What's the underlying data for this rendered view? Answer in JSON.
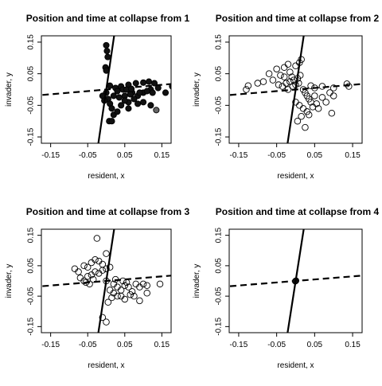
{
  "chart_data": [
    {
      "type": "scatter",
      "title": "Position and time at collapse from  1",
      "xlabel": "resident, x",
      "ylabel": "invader, y",
      "xlim": [
        -0.175,
        0.175
      ],
      "ylim": [
        -0.17,
        0.17
      ],
      "xticks": [
        "-0.15",
        "-0.05",
        "0.05",
        "0.15"
      ],
      "yticks": [
        "-0.15",
        "-0.05",
        "0.05",
        "0.15"
      ],
      "xtick_values": [
        -0.15,
        -0.05,
        0.05,
        0.15
      ],
      "ytick_values": [
        -0.15,
        -0.05,
        0.05,
        0.15
      ],
      "grid": false,
      "marker": "filled-circle",
      "marker_color": "#111111",
      "solid_line": [
        [
          -0.025,
          -0.2
        ],
        [
          0.025,
          0.2
        ]
      ],
      "dashed_line": [
        [
          -0.2,
          -0.02
        ],
        [
          0.2,
          0.02
        ]
      ],
      "points": [
        [
          0.0,
          0.14
        ],
        [
          0.002,
          0.122
        ],
        [
          0.004,
          0.103
        ],
        [
          -0.002,
          0.07
        ],
        [
          0.0,
          0.06
        ],
        [
          0.005,
          -0.03
        ],
        [
          0.01,
          -0.045
        ],
        [
          0.015,
          -0.06
        ],
        [
          0.02,
          -0.08
        ],
        [
          0.03,
          -0.07
        ],
        [
          0.008,
          -0.1
        ],
        [
          0.015,
          -0.1
        ],
        [
          0.04,
          -0.05
        ],
        [
          0.05,
          -0.02
        ],
        [
          0.06,
          -0.04
        ],
        [
          0.07,
          -0.01
        ],
        [
          0.085,
          -0.02
        ],
        [
          0.1,
          -0.01
        ],
        [
          0.12,
          0.0
        ],
        [
          0.14,
          0.005
        ],
        [
          0.16,
          -0.01
        ],
        [
          0.178,
          0.01
        ],
        [
          0.0,
          -0.01
        ],
        [
          0.025,
          0.005
        ],
        [
          0.04,
          0.01
        ],
        [
          0.06,
          0.015
        ],
        [
          0.08,
          0.02
        ],
        [
          0.1,
          0.022
        ],
        [
          0.115,
          0.025
        ],
        [
          0.13,
          0.02
        ],
        [
          -0.01,
          -0.02
        ],
        [
          -0.005,
          -0.035
        ],
        [
          0.02,
          -0.02
        ],
        [
          0.035,
          -0.025
        ],
        [
          0.05,
          -0.035
        ],
        [
          0.065,
          -0.015
        ],
        [
          0.075,
          -0.03
        ],
        [
          0.09,
          -0.01
        ],
        [
          0.11,
          -0.005
        ],
        [
          0.125,
          -0.01
        ],
        [
          0.045,
          0.0
        ],
        [
          0.055,
          0.0
        ],
        [
          0.068,
          0.002
        ],
        [
          0.03,
          -0.005
        ],
        [
          0.01,
          0.012
        ],
        [
          0.135,
          -0.065
        ],
        [
          0.12,
          -0.05
        ],
        [
          0.1,
          -0.04
        ],
        [
          0.085,
          -0.045
        ],
        [
          0.06,
          -0.06
        ]
      ]
    },
    {
      "type": "scatter",
      "title": "Position and time at collapse from  2",
      "xlabel": "resident, x",
      "ylabel": "invader, y",
      "xlim": [
        -0.175,
        0.175
      ],
      "ylim": [
        -0.17,
        0.17
      ],
      "xticks": [
        "-0.15",
        "-0.05",
        "0.05",
        "0.15"
      ],
      "yticks": [
        "-0.15",
        "-0.05",
        "0.05",
        "0.15"
      ],
      "xtick_values": [
        -0.15,
        -0.05,
        0.05,
        0.15
      ],
      "ytick_values": [
        -0.15,
        -0.05,
        0.05,
        0.15
      ],
      "grid": false,
      "marker": "open-circle",
      "marker_color": "#000000",
      "solid_line": [
        [
          -0.025,
          -0.2
        ],
        [
          0.025,
          0.2
        ]
      ],
      "dashed_line": [
        [
          -0.2,
          -0.02
        ],
        [
          0.2,
          0.02
        ]
      ],
      "points": [
        [
          -0.13,
          0.0
        ],
        [
          -0.125,
          0.012
        ],
        [
          -0.1,
          0.02
        ],
        [
          -0.085,
          0.025
        ],
        [
          -0.07,
          0.05
        ],
        [
          -0.06,
          0.03
        ],
        [
          -0.05,
          0.065
        ],
        [
          -0.04,
          0.045
        ],
        [
          -0.03,
          0.07
        ],
        [
          -0.02,
          0.08
        ],
        [
          -0.015,
          0.055
        ],
        [
          -0.01,
          0.04
        ],
        [
          0.0,
          0.075
        ],
        [
          0.01,
          0.085
        ],
        [
          0.015,
          0.095
        ],
        [
          -0.045,
          0.015
        ],
        [
          -0.035,
          0.01
        ],
        [
          -0.025,
          0.02
        ],
        [
          -0.015,
          0.025
        ],
        [
          -0.005,
          0.03
        ],
        [
          0.005,
          0.035
        ],
        [
          0.012,
          0.045
        ],
        [
          0.02,
          0.0
        ],
        [
          0.025,
          -0.01
        ],
        [
          0.03,
          -0.02
        ],
        [
          0.035,
          -0.03
        ],
        [
          0.04,
          -0.04
        ],
        [
          0.05,
          -0.02
        ],
        [
          0.055,
          -0.045
        ],
        [
          0.06,
          -0.06
        ],
        [
          0.07,
          -0.025
        ],
        [
          0.08,
          -0.04
        ],
        [
          0.09,
          -0.01
        ],
        [
          0.1,
          -0.02
        ],
        [
          0.03,
          -0.07
        ],
        [
          0.035,
          -0.08
        ],
        [
          0.015,
          -0.085
        ],
        [
          0.005,
          -0.1
        ],
        [
          0.025,
          -0.12
        ],
        [
          0.135,
          0.018
        ],
        [
          0.14,
          0.01
        ],
        [
          0.095,
          -0.075
        ],
        [
          0.1,
          0.005
        ],
        [
          0.07,
          0.01
        ],
        [
          0.05,
          0.005
        ],
        [
          0.04,
          0.012
        ],
        [
          0.0,
          -0.04
        ],
        [
          0.01,
          -0.05
        ],
        [
          0.02,
          -0.06
        ],
        [
          0.045,
          -0.055
        ],
        [
          -0.02,
          0.0
        ],
        [
          -0.008,
          0.01
        ],
        [
          0.0,
          0.015
        ],
        [
          0.008,
          0.02
        ],
        [
          -0.03,
          0.04
        ]
      ]
    },
    {
      "type": "scatter",
      "title": "Position and time at collapse from  3",
      "xlabel": "resident, x",
      "ylabel": "invader, y",
      "xlim": [
        -0.175,
        0.175
      ],
      "ylim": [
        -0.17,
        0.17
      ],
      "xticks": [
        "-0.15",
        "-0.05",
        "0.05",
        "0.15"
      ],
      "yticks": [
        "-0.15",
        "-0.05",
        "0.05",
        "0.15"
      ],
      "xtick_values": [
        -0.15,
        -0.05,
        0.05,
        0.15
      ],
      "ytick_values": [
        -0.15,
        -0.05,
        0.05,
        0.15
      ],
      "grid": false,
      "marker": "open-circle",
      "marker_color": "#000000",
      "solid_line": [
        [
          -0.025,
          -0.2
        ],
        [
          0.025,
          0.2
        ]
      ],
      "dashed_line": [
        [
          -0.2,
          -0.02
        ],
        [
          0.2,
          0.02
        ]
      ],
      "points": [
        [
          -0.025,
          0.14
        ],
        [
          -0.085,
          0.04
        ],
        [
          -0.075,
          0.03
        ],
        [
          -0.06,
          0.05
        ],
        [
          -0.05,
          0.045
        ],
        [
          -0.04,
          0.06
        ],
        [
          -0.03,
          0.07
        ],
        [
          -0.02,
          0.065
        ],
        [
          -0.01,
          0.055
        ],
        [
          0.0,
          0.09
        ],
        [
          -0.07,
          0.01
        ],
        [
          -0.06,
          0.0
        ],
        [
          -0.05,
          0.015
        ],
        [
          -0.04,
          0.02
        ],
        [
          -0.03,
          0.03
        ],
        [
          -0.02,
          0.025
        ],
        [
          -0.01,
          0.035
        ],
        [
          0.0,
          0.04
        ],
        [
          0.01,
          0.045
        ],
        [
          -0.055,
          -0.005
        ],
        [
          -0.045,
          -0.01
        ],
        [
          -0.035,
          0.005
        ],
        [
          0.0,
          0.0
        ],
        [
          0.02,
          -0.01
        ],
        [
          0.03,
          -0.02
        ],
        [
          0.04,
          -0.03
        ],
        [
          0.05,
          -0.015
        ],
        [
          0.06,
          -0.02
        ],
        [
          0.07,
          -0.035
        ],
        [
          0.08,
          -0.01
        ],
        [
          0.09,
          -0.02
        ],
        [
          0.1,
          -0.01
        ],
        [
          0.11,
          -0.015
        ],
        [
          0.145,
          -0.01
        ],
        [
          0.11,
          -0.04
        ],
        [
          0.09,
          -0.065
        ],
        [
          0.05,
          -0.06
        ],
        [
          0.03,
          -0.05
        ],
        [
          0.015,
          -0.055
        ],
        [
          0.005,
          -0.07
        ],
        [
          -0.01,
          -0.12
        ],
        [
          0.0,
          -0.135
        ],
        [
          0.02,
          -0.04
        ],
        [
          0.01,
          -0.03
        ],
        [
          0.04,
          -0.05
        ],
        [
          0.065,
          -0.045
        ],
        [
          0.075,
          -0.05
        ],
        [
          0.055,
          -0.005
        ],
        [
          0.045,
          0.0
        ],
        [
          0.025,
          0.005
        ]
      ]
    },
    {
      "type": "scatter",
      "title": "Position and time at collapse from  4",
      "xlabel": "resident, x",
      "ylabel": "invader, y",
      "xlim": [
        -0.175,
        0.175
      ],
      "ylim": [
        -0.17,
        0.17
      ],
      "xticks": [
        "-0.15",
        "-0.05",
        "0.05",
        "0.15"
      ],
      "yticks": [
        "-0.15",
        "-0.05",
        "0.05",
        "0.15"
      ],
      "xtick_values": [
        -0.15,
        -0.05,
        0.05,
        0.15
      ],
      "ytick_values": [
        -0.15,
        -0.05,
        0.05,
        0.15
      ],
      "grid": false,
      "marker": "filled-circle",
      "marker_color": "#111111",
      "solid_line": [
        [
          -0.025,
          -0.2
        ],
        [
          0.025,
          0.2
        ]
      ],
      "dashed_line": [
        [
          -0.2,
          -0.02
        ],
        [
          0.2,
          0.02
        ]
      ],
      "points": [
        [
          0.0,
          0.0
        ],
        [
          0.001,
          0.001
        ],
        [
          -0.001,
          -0.001
        ]
      ]
    }
  ]
}
